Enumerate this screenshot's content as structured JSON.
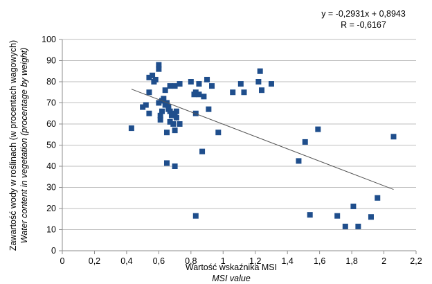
{
  "chart_data": {
    "type": "scatter",
    "xlabel": "Wartość wskaźnika MSI",
    "xlabel_en": "MSI value",
    "ylabel": "Zawartość wody w roślinach (w procentach wagowych)",
    "ylabel_en": "Water content in vegetation (procentage by weight)",
    "xlim": [
      0,
      2.2
    ],
    "ylim": [
      0,
      100
    ],
    "x_ticks": [
      "0",
      "0,2",
      "0,4",
      "0,6",
      "0,8",
      "1",
      "1,2",
      "1,4",
      "1,6",
      "1,8",
      "2",
      "2,2"
    ],
    "y_ticks": [
      "0",
      "10",
      "20",
      "30",
      "40",
      "50",
      "60",
      "70",
      "80",
      "90",
      "100"
    ],
    "grid": "horizontal",
    "marker_color": "#1f4e8c",
    "trendline": {
      "equation": "y = -0,2931x + 0,8943",
      "r_label": "R = -0,6167",
      "from": [
        0.43,
        76.5
      ],
      "to": [
        2.06,
        29
      ]
    },
    "points": [
      [
        0.43,
        58
      ],
      [
        0.5,
        68
      ],
      [
        0.52,
        69
      ],
      [
        0.54,
        65
      ],
      [
        0.54,
        75
      ],
      [
        0.54,
        82
      ],
      [
        0.56,
        83
      ],
      [
        0.57,
        80
      ],
      [
        0.58,
        81
      ],
      [
        0.6,
        88
      ],
      [
        0.6,
        86
      ],
      [
        0.6,
        70
      ],
      [
        0.61,
        62
      ],
      [
        0.61,
        64
      ],
      [
        0.62,
        66
      ],
      [
        0.62,
        71
      ],
      [
        0.63,
        72
      ],
      [
        0.64,
        76
      ],
      [
        0.64,
        69
      ],
      [
        0.65,
        56
      ],
      [
        0.65,
        70
      ],
      [
        0.66,
        68
      ],
      [
        0.66,
        67
      ],
      [
        0.67,
        66
      ],
      [
        0.67,
        78
      ],
      [
        0.67,
        61
      ],
      [
        0.68,
        64
      ],
      [
        0.69,
        60
      ],
      [
        0.7,
        78
      ],
      [
        0.7,
        57
      ],
      [
        0.7,
        65
      ],
      [
        0.71,
        66
      ],
      [
        0.71,
        63
      ],
      [
        0.73,
        79
      ],
      [
        0.73,
        60
      ],
      [
        0.65,
        41.5
      ],
      [
        0.7,
        40
      ],
      [
        0.8,
        80
      ],
      [
        0.82,
        74
      ],
      [
        0.83,
        75
      ],
      [
        0.83,
        65
      ],
      [
        0.85,
        79
      ],
      [
        0.85,
        74
      ],
      [
        0.88,
        73
      ],
      [
        0.9,
        81
      ],
      [
        0.91,
        67
      ],
      [
        0.93,
        78
      ],
      [
        0.97,
        56
      ],
      [
        0.87,
        47
      ],
      [
        0.83,
        16.5
      ],
      [
        1.06,
        75
      ],
      [
        1.11,
        79
      ],
      [
        1.13,
        75
      ],
      [
        1.22,
        80
      ],
      [
        1.23,
        85
      ],
      [
        1.24,
        76
      ],
      [
        1.3,
        79
      ],
      [
        1.47,
        42.5
      ],
      [
        1.51,
        51.5
      ],
      [
        1.54,
        17
      ],
      [
        1.59,
        57.5
      ],
      [
        1.71,
        16.5
      ],
      [
        1.76,
        11.5
      ],
      [
        1.81,
        21
      ],
      [
        1.84,
        11.5
      ],
      [
        1.92,
        16
      ],
      [
        1.96,
        25
      ],
      [
        2.06,
        54
      ]
    ]
  }
}
